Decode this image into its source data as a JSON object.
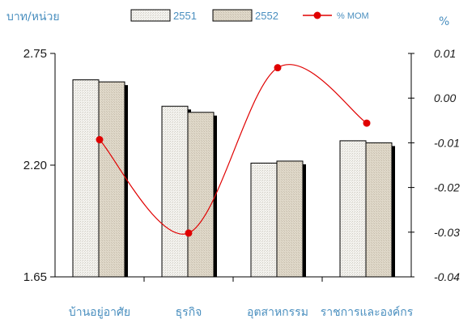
{
  "chart_data": {
    "type": "bar",
    "left_axis_unit": "บาท/หน่วย",
    "right_axis_unit": "%",
    "categories": [
      "บ้านอยู่อาศัย",
      "ธุรกิจ",
      "อุตสาหกรรม",
      "ราชการและองค์กร"
    ],
    "series": [
      {
        "name": "2551",
        "type": "bar",
        "axis": "left",
        "color": "#f2f1ec",
        "values": [
          2.62,
          2.49,
          2.21,
          2.32
        ]
      },
      {
        "name": "2552",
        "type": "bar",
        "axis": "left",
        "color": "#ddd5c6",
        "values": [
          2.61,
          2.46,
          2.22,
          2.31
        ]
      },
      {
        "name": "% MOM",
        "type": "line",
        "axis": "right",
        "color": "#e00000",
        "values": [
          -0.0093,
          -0.0302,
          0.0068,
          -0.0056
        ]
      }
    ],
    "left_axis": {
      "min": 1.65,
      "max": 2.75,
      "ticks": [
        "1.65",
        "2.20",
        "2.75"
      ],
      "tick_values": [
        1.65,
        2.2,
        2.75
      ]
    },
    "right_axis": {
      "min": -0.04,
      "max": 0.01,
      "ticks": [
        "0.01",
        "0.00",
        "-0.01",
        "-0.02",
        "-0.03",
        "-0.04"
      ],
      "tick_values": [
        0.01,
        0.0,
        -0.01,
        -0.02,
        -0.03,
        -0.04
      ]
    },
    "grid": false,
    "legend_position": "top"
  }
}
